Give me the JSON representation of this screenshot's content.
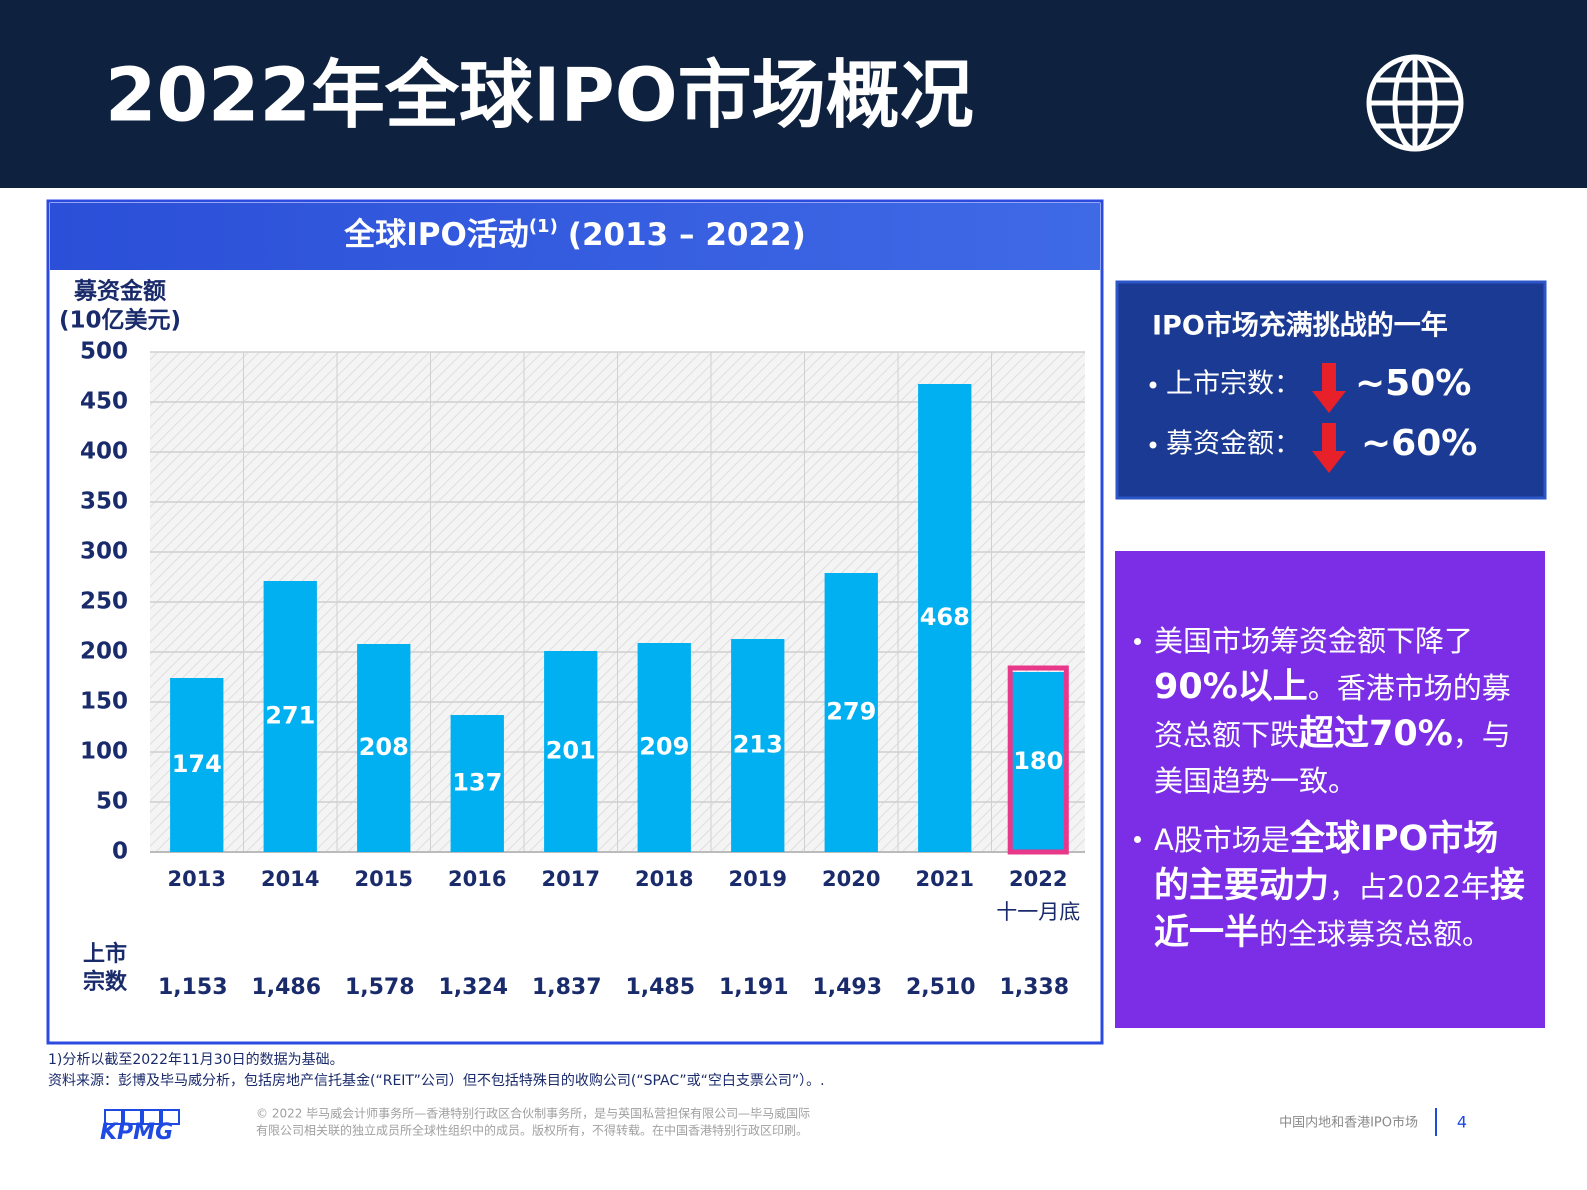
{
  "header": {
    "title": "2022年全球IPO市场概况"
  },
  "chart_data": {
    "type": "bar",
    "title": "全球IPO活动",
    "title_note": "(1)",
    "title_years": "(2013 – 2022)",
    "y_label": [
      "募资金额",
      "(10亿美元)"
    ],
    "categories": [
      "2013",
      "2014",
      "2015",
      "2016",
      "2017",
      "2018",
      "2019",
      "2020",
      "2021",
      "2022"
    ],
    "category_note": "十一月底",
    "values": [
      174,
      271,
      208,
      137,
      201,
      209,
      213,
      279,
      468,
      180
    ],
    "color": "#00b0f0",
    "highlight_color": "#e8388a",
    "ylim": [
      0,
      500
    ],
    "yticks": [
      0,
      50,
      100,
      150,
      200,
      250,
      300,
      350,
      400,
      450,
      500
    ],
    "grid": true,
    "listing_counts": {
      "label": [
        "上市",
        "宗数"
      ],
      "values": [
        1153,
        1486,
        1578,
        1324,
        1837,
        1485,
        1191,
        1493,
        2510,
        1338
      ],
      "value_labels": [
        "1,153",
        "1,486",
        "1,578",
        "1,324",
        "1,837",
        "1,485",
        "1,191",
        "1,493",
        "2,510",
        "1,338"
      ]
    }
  },
  "summary_panel": {
    "title": "IPO市场充满挑战的一年",
    "items": [
      {
        "label": "上市宗数：",
        "value": "~50%"
      },
      {
        "label": "募资金额：",
        "value": "~60%"
      }
    ]
  },
  "insight_panel": {
    "bullets": [
      [
        {
          "text": "美国市场筹资金额下降了",
          "bold": false
        },
        {
          "text": "90%以上",
          "bold": true
        },
        {
          "text": "。香港市场的募资总额下跌",
          "bold": false
        },
        {
          "text": "超过70%",
          "bold": true
        },
        {
          "text": "，与美国趋势一致。",
          "bold": false
        }
      ],
      [
        {
          "text": "A股市场是",
          "bold": false
        },
        {
          "text": "全球IPO市场的主要动力",
          "bold": true
        },
        {
          "text": "，占2022年",
          "bold": false
        },
        {
          "text": "接近一半",
          "bold": true
        },
        {
          "text": "的全球募资总额。",
          "bold": false
        }
      ]
    ]
  },
  "footnotes": [
    "1)分析以截至2022年11月30日的数据为基础。",
    "资料来源：彭博及毕马威分析，包括房地产信托基金(“REIT”公司）但不包括特殊目的收购公司(“SPAC”或“空白支票公司”）。."
  ],
  "footer": {
    "logo": "KPMG",
    "copyright": [
      "© 2022 毕马威会计师事务所—香港特别行政区合伙制事务所，是与英国私营担保有限公司—毕马威国际",
      "有限公司相关联的独立成员所全球性组织中的成员。版权所有，不得转载。在中国香港特别行政区印刷。"
    ],
    "section": "中国内地和香港IPO市场",
    "page": "4"
  }
}
